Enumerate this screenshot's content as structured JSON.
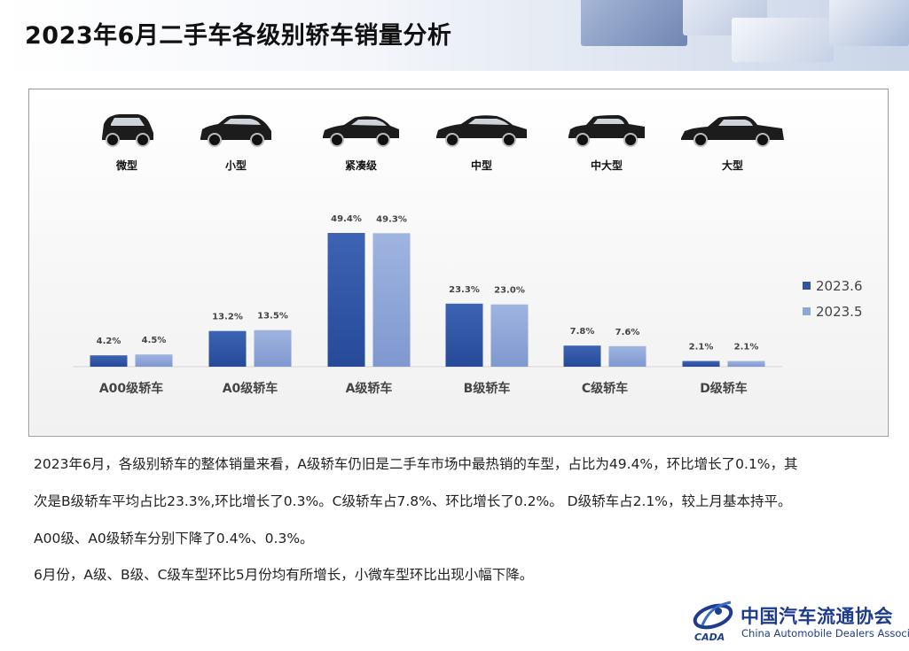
{
  "header": {
    "title": "2023年6月二手车各级别轿车销量分析"
  },
  "cars": [
    {
      "label": "微型",
      "icon": "microcar-icon"
    },
    {
      "label": "小型",
      "icon": "hatchback-icon"
    },
    {
      "label": "紧凑级",
      "icon": "compact-sedan-icon"
    },
    {
      "label": "中型",
      "icon": "midsize-sedan-icon"
    },
    {
      "label": "中大型",
      "icon": "large-sedan-icon"
    },
    {
      "label": "大型",
      "icon": "fullsize-sedan-icon"
    }
  ],
  "chart_data": {
    "type": "bar",
    "categories": [
      "A00级轿车",
      "A0级轿车",
      "A级轿车",
      "B级轿车",
      "C级轿车",
      "D级轿车"
    ],
    "series": [
      {
        "name": "2023.6",
        "values": [
          4.2,
          13.2,
          49.4,
          23.3,
          7.8,
          2.1
        ],
        "labels": [
          "4.2%",
          "13.2%",
          "49.4%",
          "23.3%",
          "7.8%",
          "2.1%"
        ],
        "color": "#2f55a3"
      },
      {
        "name": "2023.5",
        "values": [
          4.5,
          13.5,
          49.3,
          23.0,
          7.6,
          2.1
        ],
        "labels": [
          "4.5%",
          "13.5%",
          "49.3%",
          "23.0%",
          "7.6%",
          "2.1%"
        ],
        "color": "#8ea6d8"
      }
    ],
    "unit": "%",
    "legend_position": "right",
    "grid": false
  },
  "paragraphs": [
    "2023年6月，各级别轿车的整体销量来看，A级轿车仍旧是二手车市场中最热销的车型，占比为49.4%，环比增长了0.1%，其",
    "次是B级轿车平均占比23.3%,环比增长了0.3%。C级轿车占7.8%、环比增长了0.2%。 D级轿车占2.1%，较上月基本持平。",
    "A00级、A0级轿车分别下降了0.4%、0.3%。",
    "6月份，A级、B级、C级车型环比5月份均有所增长，小微车型环比出现小幅下降。"
  ],
  "logo": {
    "name_cn": "中国汽车流通协会",
    "name_en": "China Automobile Dealers Association",
    "mark_text": "CADA"
  },
  "colors": {
    "series_2023_6": "#2f55a3",
    "series_2023_5": "#8ea6d8",
    "brand_blue": "#1f3c8c"
  }
}
